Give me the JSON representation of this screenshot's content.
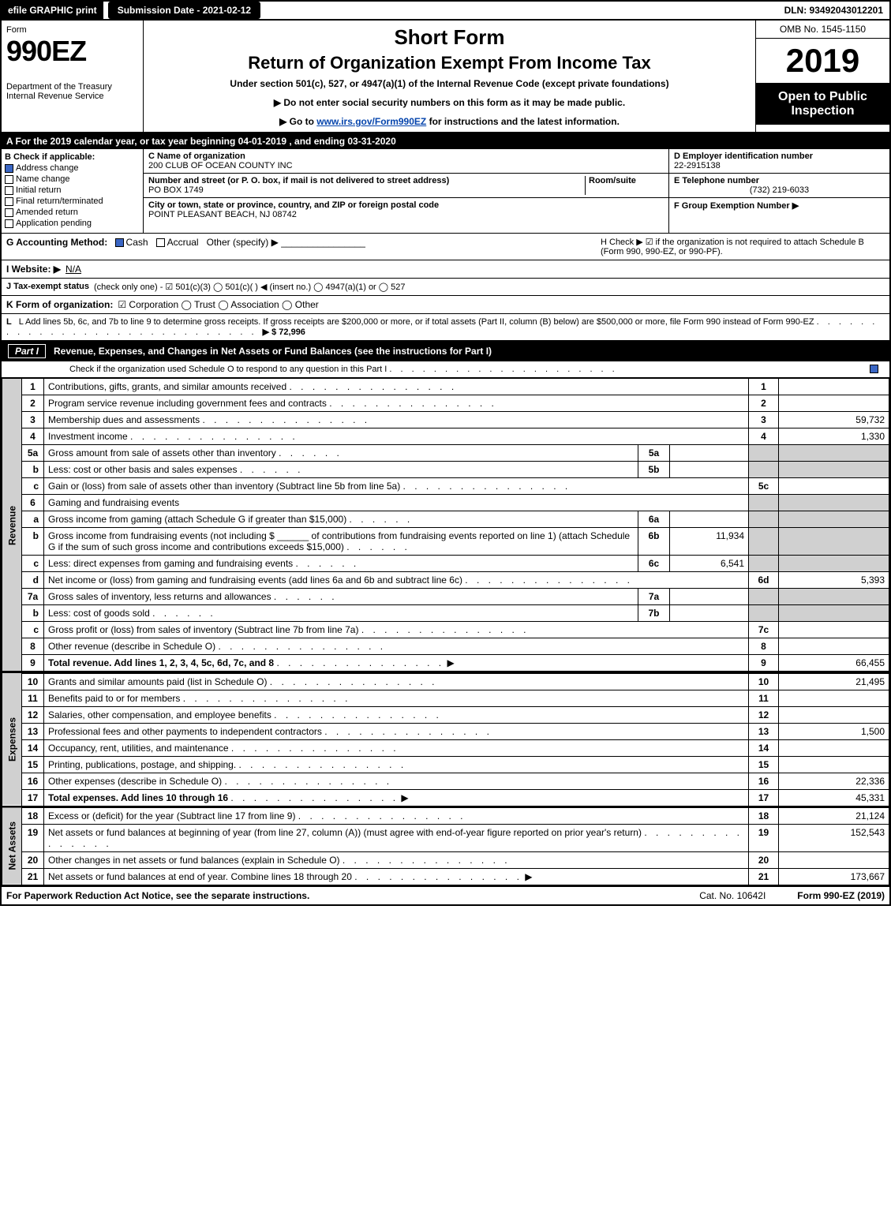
{
  "topbar": {
    "efile": "efile GRAPHIC print",
    "submission": "Submission Date - 2021-02-12",
    "dln": "DLN: 93492043012201"
  },
  "header": {
    "form_label": "Form",
    "form_no": "990EZ",
    "dept": "Department of the Treasury\nInternal Revenue Service",
    "short_form": "Short Form",
    "title": "Return of Organization Exempt From Income Tax",
    "under": "Under section 501(c), 527, or 4947(a)(1) of the Internal Revenue Code (except private foundations)",
    "note1": "▶ Do not enter social security numbers on this form as it may be made public.",
    "note2_pre": "▶ Go to ",
    "note2_link": "www.irs.gov/Form990EZ",
    "note2_post": " for instructions and the latest information.",
    "omb": "OMB No. 1545-1150",
    "year": "2019",
    "oti": "Open to Public Inspection"
  },
  "period": "A  For the 2019 calendar year, or tax year beginning 04-01-2019 , and ending 03-31-2020",
  "boxB": {
    "hdr": "B  Check if applicable:",
    "items": [
      {
        "label": "Address change",
        "checked": true
      },
      {
        "label": "Name change",
        "checked": false
      },
      {
        "label": "Initial return",
        "checked": false
      },
      {
        "label": "Final return/terminated",
        "checked": false
      },
      {
        "label": "Amended return",
        "checked": false
      },
      {
        "label": "Application pending",
        "checked": false
      }
    ]
  },
  "boxC": {
    "name_lbl": "C Name of organization",
    "name": "200 CLUB OF OCEAN COUNTY INC",
    "street_lbl": "Number and street (or P. O. box, if mail is not delivered to street address)",
    "room_lbl": "Room/suite",
    "street": "PO BOX 1749",
    "city_lbl": "City or town, state or province, country, and ZIP or foreign postal code",
    "city": "POINT PLEASANT BEACH, NJ  08742"
  },
  "boxD": {
    "ein_lbl": "D Employer identification number",
    "ein": "22-2915138",
    "tel_lbl": "E Telephone number",
    "tel": "(732) 219-6033",
    "grp_lbl": "F Group Exemption Number  ▶"
  },
  "lineG": {
    "lead": "G Accounting Method:",
    "cash": "Cash",
    "accrual": "Accrual",
    "other": "Other (specify) ▶"
  },
  "lineH": {
    "text": "H  Check ▶ ☑ if the organization is not required to attach Schedule B (Form 990, 990-EZ, or 990-PF)."
  },
  "lineI": {
    "lead": "I Website: ▶",
    "val": "N/A"
  },
  "lineJ": {
    "lead": "J Tax-exempt status",
    "rest": "(check only one) - ☑ 501(c)(3)  ◯ 501(c)(  ) ◀ (insert no.)  ◯ 4947(a)(1) or  ◯ 527"
  },
  "lineK": {
    "lead": "K Form of organization:",
    "rest": "☑ Corporation   ◯ Trust   ◯ Association   ◯ Other"
  },
  "lineL": {
    "text": "L Add lines 5b, 6c, and 7b to line 9 to determine gross receipts. If gross receipts are $200,000 or more, or if total assets (Part II, column (B) below) are $500,000 or more, file Form 990 instead of Form 990-EZ",
    "amt_lbl": "▶ $ 72,996"
  },
  "part1": {
    "label": "Part I",
    "title": "Revenue, Expenses, and Changes in Net Assets or Fund Balances (see the instructions for Part I)",
    "sub": "Check if the organization used Schedule O to respond to any question in this Part I"
  },
  "sections": {
    "revenue": "Revenue",
    "expenses": "Expenses",
    "netassets": "Net Assets"
  },
  "rows": [
    {
      "n": "1",
      "desc": "Contributions, gifts, grants, and similar amounts received",
      "ln": "1",
      "amt": ""
    },
    {
      "n": "2",
      "desc": "Program service revenue including government fees and contracts",
      "ln": "2",
      "amt": ""
    },
    {
      "n": "3",
      "desc": "Membership dues and assessments",
      "ln": "3",
      "amt": "59,732"
    },
    {
      "n": "4",
      "desc": "Investment income",
      "ln": "4",
      "amt": "1,330"
    },
    {
      "n": "5a",
      "desc": "Gross amount from sale of assets other than inventory",
      "box": "5a",
      "boxval": ""
    },
    {
      "n": "b",
      "desc": "Less: cost or other basis and sales expenses",
      "box": "5b",
      "boxval": ""
    },
    {
      "n": "c",
      "desc": "Gain or (loss) from sale of assets other than inventory (Subtract line 5b from line 5a)",
      "ln": "5c",
      "amt": ""
    },
    {
      "n": "6",
      "desc": "Gaming and fundraising events",
      "shade": true
    },
    {
      "n": "a",
      "desc": "Gross income from gaming (attach Schedule G if greater than $15,000)",
      "box": "6a",
      "boxval": ""
    },
    {
      "n": "b",
      "desc": "Gross income from fundraising events (not including $ ______ of contributions from fundraising events reported on line 1) (attach Schedule G if the sum of such gross income and contributions exceeds $15,000)",
      "box": "6b",
      "boxval": "11,934"
    },
    {
      "n": "c",
      "desc": "Less: direct expenses from gaming and fundraising events",
      "box": "6c",
      "boxval": "6,541"
    },
    {
      "n": "d",
      "desc": "Net income or (loss) from gaming and fundraising events (add lines 6a and 6b and subtract line 6c)",
      "ln": "6d",
      "amt": "5,393"
    },
    {
      "n": "7a",
      "desc": "Gross sales of inventory, less returns and allowances",
      "box": "7a",
      "boxval": ""
    },
    {
      "n": "b",
      "desc": "Less: cost of goods sold",
      "box": "7b",
      "boxval": ""
    },
    {
      "n": "c",
      "desc": "Gross profit or (loss) from sales of inventory (Subtract line 7b from line 7a)",
      "ln": "7c",
      "amt": ""
    },
    {
      "n": "8",
      "desc": "Other revenue (describe in Schedule O)",
      "ln": "8",
      "amt": ""
    },
    {
      "n": "9",
      "desc": "Total revenue. Add lines 1, 2, 3, 4, 5c, 6d, 7c, and 8",
      "ln": "9",
      "amt": "66,455",
      "bold": true,
      "arrow": true
    }
  ],
  "exp_rows": [
    {
      "n": "10",
      "desc": "Grants and similar amounts paid (list in Schedule O)",
      "ln": "10",
      "amt": "21,495"
    },
    {
      "n": "11",
      "desc": "Benefits paid to or for members",
      "ln": "11",
      "amt": ""
    },
    {
      "n": "12",
      "desc": "Salaries, other compensation, and employee benefits",
      "ln": "12",
      "amt": ""
    },
    {
      "n": "13",
      "desc": "Professional fees and other payments to independent contractors",
      "ln": "13",
      "amt": "1,500"
    },
    {
      "n": "14",
      "desc": "Occupancy, rent, utilities, and maintenance",
      "ln": "14",
      "amt": ""
    },
    {
      "n": "15",
      "desc": "Printing, publications, postage, and shipping.",
      "ln": "15",
      "amt": ""
    },
    {
      "n": "16",
      "desc": "Other expenses (describe in Schedule O)",
      "ln": "16",
      "amt": "22,336"
    },
    {
      "n": "17",
      "desc": "Total expenses. Add lines 10 through 16",
      "ln": "17",
      "amt": "45,331",
      "bold": true,
      "arrow": true
    }
  ],
  "na_rows": [
    {
      "n": "18",
      "desc": "Excess or (deficit) for the year (Subtract line 17 from line 9)",
      "ln": "18",
      "amt": "21,124"
    },
    {
      "n": "19",
      "desc": "Net assets or fund balances at beginning of year (from line 27, column (A)) (must agree with end-of-year figure reported on prior year's return)",
      "ln": "19",
      "amt": "152,543"
    },
    {
      "n": "20",
      "desc": "Other changes in net assets or fund balances (explain in Schedule O)",
      "ln": "20",
      "amt": ""
    },
    {
      "n": "21",
      "desc": "Net assets or fund balances at end of year. Combine lines 18 through 20",
      "ln": "21",
      "amt": "173,667",
      "arrow": true
    }
  ],
  "footer": {
    "left": "For Paperwork Reduction Act Notice, see the separate instructions.",
    "mid": "Cat. No. 10642I",
    "right": "Form 990-EZ (2019)"
  },
  "colors": {
    "black": "#000000",
    "white": "#ffffff",
    "shade": "#d0d0d0",
    "check_blue": "#3a66c4",
    "link": "#0645ad"
  }
}
